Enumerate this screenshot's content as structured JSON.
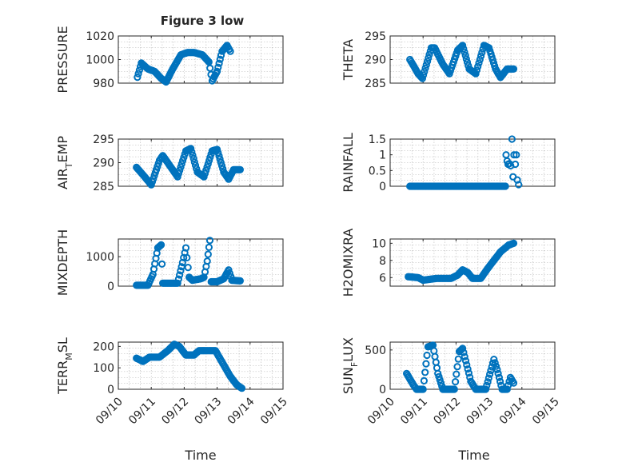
{
  "figure": {
    "title": "Figure 3 low",
    "x_label": "Time",
    "date_ticks": [
      "09/10",
      "09/11",
      "09/12",
      "09/13",
      "09/14",
      "09/15"
    ],
    "marker_color": "#0072bd"
  },
  "chart_data": [
    {
      "type": "scatter",
      "title": "Figure 3 low",
      "ylabel": "PRESSURE",
      "ylabel_main": "PRESSURE",
      "ylabel_sub": "",
      "ylabel_tail": "",
      "ylim": [
        980,
        1020
      ],
      "yticks": [
        "1020",
        "1000",
        "980"
      ],
      "ytick_values": [
        1020,
        1000,
        980
      ],
      "xlim": [
        0,
        5
      ],
      "keys": [
        [
          0.58,
          985
        ],
        [
          0.7,
          997
        ],
        [
          0.9,
          992
        ],
        [
          1.1,
          990
        ],
        [
          1.3,
          984
        ],
        [
          1.45,
          981
        ],
        [
          1.65,
          992
        ],
        [
          1.9,
          1004
        ],
        [
          2.1,
          1006
        ],
        [
          2.3,
          1006
        ],
        [
          2.55,
          1004
        ],
        [
          2.75,
          998
        ],
        [
          2.85,
          982
        ],
        [
          3.0,
          990
        ],
        [
          3.15,
          1007
        ],
        [
          3.3,
          1012
        ],
        [
          3.4,
          1007
        ]
      ]
    },
    {
      "type": "scatter",
      "title": "",
      "ylabel": "THETA",
      "ylabel_main": "THETA",
      "ylabel_sub": "",
      "ylabel_tail": "",
      "ylim": [
        285,
        295
      ],
      "yticks": [
        "295",
        "290",
        "285"
      ],
      "ytick_values": [
        295,
        290,
        285
      ],
      "xlim": [
        0,
        5
      ],
      "keys": [
        [
          0.6,
          290
        ],
        [
          0.85,
          287
        ],
        [
          0.98,
          286
        ],
        [
          1.25,
          292.5
        ],
        [
          1.35,
          292.5
        ],
        [
          1.6,
          289
        ],
        [
          1.8,
          287
        ],
        [
          2.05,
          292
        ],
        [
          2.2,
          293
        ],
        [
          2.4,
          288
        ],
        [
          2.6,
          287
        ],
        [
          2.85,
          293
        ],
        [
          3.0,
          292.5
        ],
        [
          3.2,
          288
        ],
        [
          3.35,
          286.2
        ],
        [
          3.55,
          288
        ],
        [
          3.75,
          288
        ]
      ]
    },
    {
      "type": "scatter",
      "title": "",
      "ylabel": "AIR_TEMP",
      "ylabel_main": "AIR",
      "ylabel_sub": "T",
      "ylabel_tail": "EMP",
      "ylim": [
        285,
        295
      ],
      "yticks": [
        "295",
        "290",
        "285"
      ],
      "ytick_values": [
        295,
        290,
        285
      ],
      "xlim": [
        0,
        5
      ],
      "keys": [
        [
          0.55,
          289
        ],
        [
          0.8,
          287
        ],
        [
          1.0,
          285.3
        ],
        [
          1.25,
          290.5
        ],
        [
          1.35,
          291.5
        ],
        [
          1.6,
          289
        ],
        [
          1.8,
          287
        ],
        [
          2.05,
          292.5
        ],
        [
          2.2,
          293
        ],
        [
          2.4,
          288
        ],
        [
          2.6,
          287
        ],
        [
          2.85,
          292.5
        ],
        [
          3.0,
          292.8
        ],
        [
          3.2,
          288
        ],
        [
          3.35,
          286.5
        ],
        [
          3.5,
          288.5
        ],
        [
          3.7,
          288.5
        ]
      ]
    },
    {
      "type": "scatter",
      "title": "",
      "ylabel": "RAINFALL",
      "ylabel_main": "RAINFALL",
      "ylabel_sub": "",
      "ylabel_tail": "",
      "ylim": [
        0,
        1.5
      ],
      "yticks": [
        "1.5",
        "1",
        "0.5",
        "0"
      ],
      "ytick_values": [
        1.5,
        1,
        0.5,
        0
      ],
      "xlim": [
        0,
        5
      ],
      "keys": [
        [
          0.6,
          0
        ],
        [
          3.0,
          0
        ],
        [
          3.5,
          0
        ]
      ],
      "extra_points": [
        [
          3.52,
          1.0
        ],
        [
          3.55,
          0.8
        ],
        [
          3.58,
          0.7
        ],
        [
          3.62,
          0.72
        ],
        [
          3.66,
          0.65
        ],
        [
          3.7,
          1.5
        ],
        [
          3.73,
          0.3
        ],
        [
          3.76,
          1.0
        ],
        [
          3.8,
          0.7
        ],
        [
          3.83,
          1.0
        ],
        [
          3.86,
          0.2
        ],
        [
          3.9,
          0.05
        ]
      ]
    },
    {
      "type": "scatter",
      "title": "",
      "ylabel": "MIXDEPTH",
      "ylabel_main": "MIXDEPTH",
      "ylabel_sub": "",
      "ylabel_tail": "",
      "ylim": [
        0,
        1600
      ],
      "yticks": [
        "1000",
        "0"
      ],
      "ytick_values": [
        1000,
        0
      ],
      "xlim": [
        0,
        5
      ],
      "keys": [
        [
          0.55,
          30
        ],
        [
          0.9,
          30
        ],
        [
          1.05,
          400
        ],
        [
          1.2,
          1300
        ],
        [
          1.3,
          1400
        ],
        [
          1.35,
          100
        ],
        [
          1.8,
          100
        ],
        [
          1.95,
          800
        ],
        [
          2.05,
          1300
        ],
        [
          2.15,
          300
        ],
        [
          2.25,
          200
        ],
        [
          2.5,
          250
        ],
        [
          2.6,
          300
        ],
        [
          2.7,
          850
        ],
        [
          2.78,
          1550
        ],
        [
          2.82,
          150
        ],
        [
          3.0,
          150
        ],
        [
          3.2,
          250
        ],
        [
          3.35,
          550
        ],
        [
          3.45,
          200
        ],
        [
          3.7,
          180
        ]
      ]
    },
    {
      "type": "scatter",
      "title": "",
      "ylabel": "H2OMIXRA",
      "ylabel_main": "H2OMIXRA",
      "ylabel_sub": "",
      "ylabel_tail": "",
      "ylim": [
        5,
        10.5
      ],
      "yticks": [
        "10",
        "8",
        "6"
      ],
      "ytick_values": [
        10,
        8,
        6
      ],
      "xlim": [
        0,
        5
      ],
      "keys": [
        [
          0.55,
          6.1
        ],
        [
          0.85,
          6.0
        ],
        [
          1.0,
          5.7
        ],
        [
          1.4,
          5.9
        ],
        [
          1.85,
          5.9
        ],
        [
          2.05,
          6.3
        ],
        [
          2.2,
          6.9
        ],
        [
          2.35,
          6.6
        ],
        [
          2.5,
          5.9
        ],
        [
          2.75,
          5.9
        ],
        [
          2.95,
          7.0
        ],
        [
          3.15,
          8.0
        ],
        [
          3.35,
          9.0
        ],
        [
          3.6,
          9.8
        ],
        [
          3.75,
          10.0
        ]
      ]
    },
    {
      "type": "scatter",
      "title": "",
      "ylabel": "TERR_MSL",
      "ylabel_main": "TERR",
      "ylabel_sub": "M",
      "ylabel_tail": "SL",
      "ylim": [
        0,
        220
      ],
      "yticks": [
        "200",
        "100",
        "0"
      ],
      "ytick_values": [
        200,
        100,
        0
      ],
      "xlim": [
        0,
        5
      ],
      "keys": [
        [
          0.55,
          145
        ],
        [
          0.75,
          130
        ],
        [
          0.95,
          150
        ],
        [
          1.25,
          150
        ],
        [
          1.5,
          180
        ],
        [
          1.7,
          210
        ],
        [
          1.85,
          200
        ],
        [
          2.05,
          160
        ],
        [
          2.3,
          160
        ],
        [
          2.45,
          180
        ],
        [
          2.95,
          180
        ],
        [
          3.1,
          140
        ],
        [
          3.25,
          100
        ],
        [
          3.4,
          60
        ],
        [
          3.6,
          20
        ],
        [
          3.75,
          5
        ]
      ]
    },
    {
      "type": "scatter",
      "title": "",
      "ylabel": "SUN_FLUX",
      "ylabel_main": "SUN",
      "ylabel_sub": "F",
      "ylabel_tail": "LUX",
      "ylim": [
        0,
        600
      ],
      "yticks": [
        "500",
        "0"
      ],
      "ytick_values": [
        500,
        0
      ],
      "xlim": [
        0,
        5
      ],
      "keys": [
        [
          0.5,
          200
        ],
        [
          0.7,
          60
        ],
        [
          0.8,
          0
        ],
        [
          1.0,
          0
        ],
        [
          1.15,
          540
        ],
        [
          1.3,
          560
        ],
        [
          1.45,
          200
        ],
        [
          1.6,
          0
        ],
        [
          1.95,
          0
        ],
        [
          2.1,
          480
        ],
        [
          2.2,
          520
        ],
        [
          2.45,
          100
        ],
        [
          2.6,
          0
        ],
        [
          2.9,
          0
        ],
        [
          3.15,
          380
        ],
        [
          3.25,
          250
        ],
        [
          3.4,
          0
        ],
        [
          3.55,
          0
        ],
        [
          3.65,
          150
        ],
        [
          3.75,
          80
        ]
      ]
    }
  ]
}
